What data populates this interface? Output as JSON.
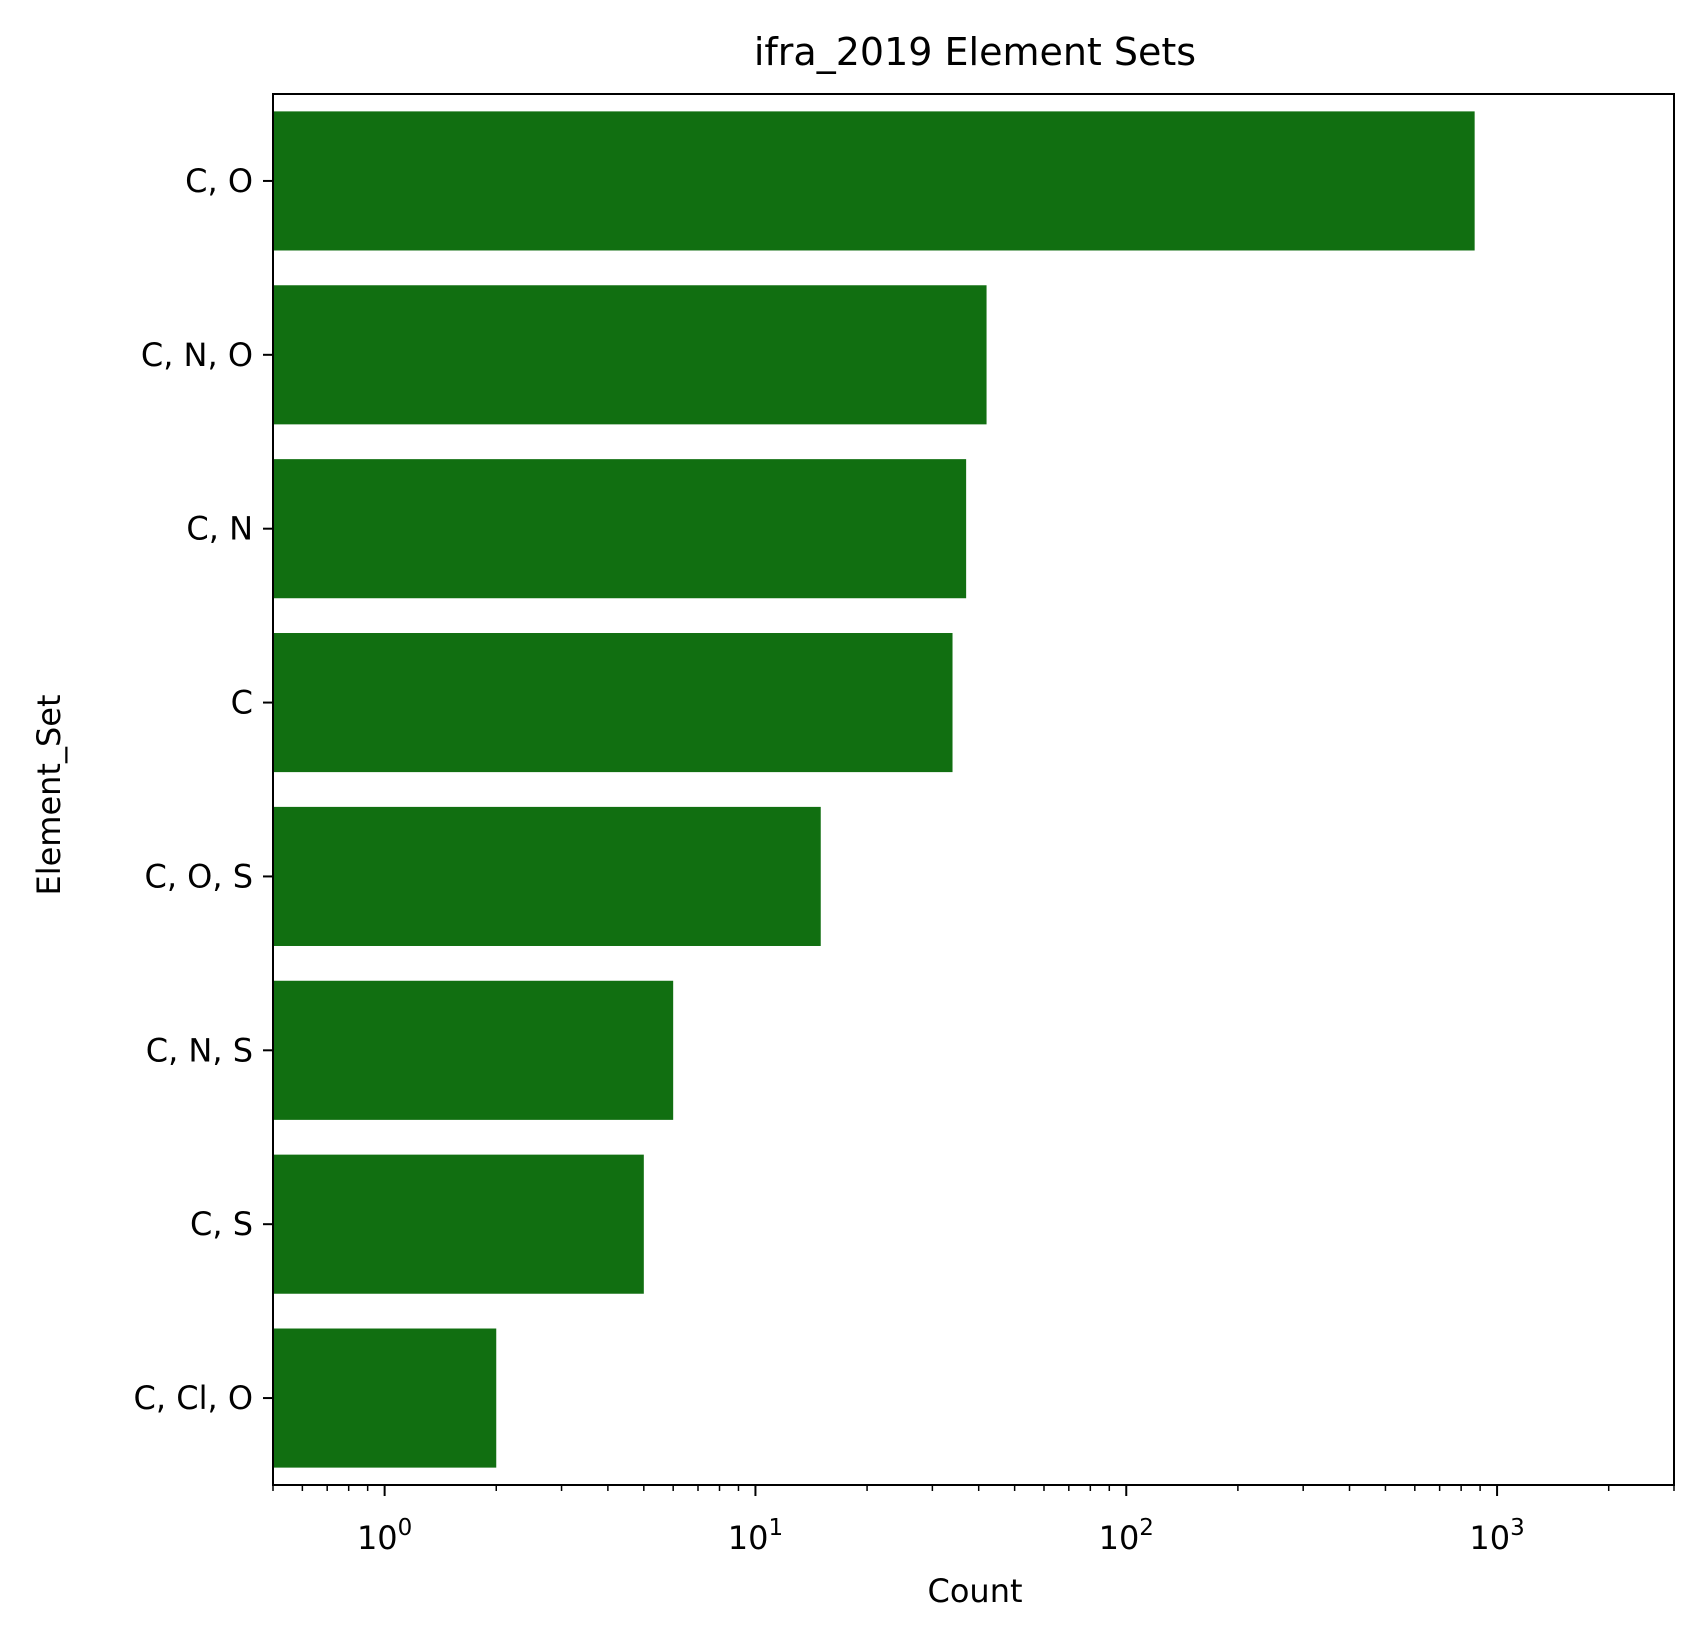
{
  "chart_data": {
    "type": "bar",
    "orientation": "horizontal",
    "title": "ifra_2019 Element Sets",
    "xlabel": "Count",
    "ylabel": "Element_Set",
    "x_scale": "log",
    "xlim": [
      0.5,
      3000
    ],
    "x_ticks": [
      {
        "base": "10",
        "exp": "0",
        "value": 1
      },
      {
        "base": "10",
        "exp": "1",
        "value": 10
      },
      {
        "base": "10",
        "exp": "2",
        "value": 100
      },
      {
        "base": "10",
        "exp": "3",
        "value": 1000
      }
    ],
    "categories": [
      "C, O",
      "C, N, O",
      "C, N",
      "C",
      "C, O, S",
      "C, N, S",
      "C, S",
      "C, Cl, O"
    ],
    "values": [
      870,
      42,
      37,
      34,
      15,
      6,
      5,
      2
    ],
    "bar_color": "#116f11",
    "grid": false,
    "legend": "none"
  }
}
